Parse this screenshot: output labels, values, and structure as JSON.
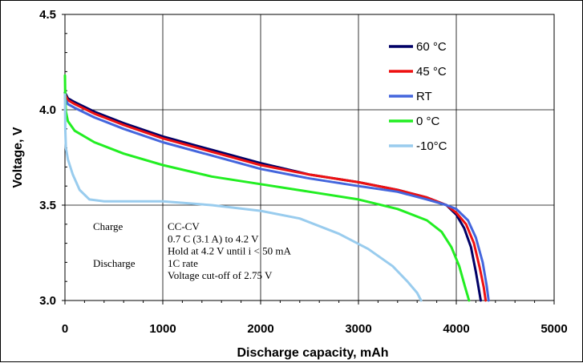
{
  "chart_data": {
    "type": "line",
    "xlabel": "Discharge capacity, mAh",
    "ylabel": "Voltage, V",
    "xlim": [
      0,
      5000
    ],
    "ylim": [
      3.0,
      4.5
    ],
    "x_ticks": [
      "0",
      "1000",
      "2000",
      "3000",
      "4000",
      "5000"
    ],
    "y_ticks": [
      "3.0",
      "3.5",
      "4.0",
      "4.5"
    ],
    "grid": true,
    "legend_position": "top-right",
    "series": [
      {
        "name": "60 °C",
        "color": "#000066",
        "x": [
          0,
          30,
          100,
          300,
          600,
          1000,
          1500,
          2000,
          2500,
          3000,
          3400,
          3700,
          3900,
          4000,
          4080,
          4150,
          4200,
          4230,
          4250
        ],
        "y": [
          4.09,
          4.06,
          4.04,
          3.99,
          3.93,
          3.86,
          3.79,
          3.72,
          3.66,
          3.62,
          3.58,
          3.54,
          3.5,
          3.45,
          3.38,
          3.28,
          3.15,
          3.06,
          3.0
        ]
      },
      {
        "name": "45 °C",
        "color": "#ee1111",
        "x": [
          0,
          30,
          100,
          300,
          600,
          1000,
          1500,
          2000,
          2500,
          3000,
          3400,
          3700,
          3900,
          4000,
          4100,
          4180,
          4240,
          4280,
          4300
        ],
        "y": [
          4.08,
          4.05,
          4.03,
          3.98,
          3.92,
          3.85,
          3.78,
          3.71,
          3.66,
          3.62,
          3.58,
          3.54,
          3.5,
          3.46,
          3.4,
          3.3,
          3.17,
          3.07,
          3.0
        ]
      },
      {
        "name": "RT",
        "color": "#4466dd",
        "x": [
          0,
          30,
          100,
          300,
          600,
          1000,
          1500,
          2000,
          2500,
          3000,
          3400,
          3700,
          3900,
          4000,
          4120,
          4200,
          4270,
          4310,
          4330
        ],
        "y": [
          4.06,
          4.03,
          4.01,
          3.96,
          3.9,
          3.83,
          3.76,
          3.69,
          3.64,
          3.6,
          3.57,
          3.53,
          3.5,
          3.48,
          3.42,
          3.33,
          3.2,
          3.08,
          3.0
        ]
      },
      {
        "name": "0 °C",
        "color": "#22ee22",
        "x": [
          0,
          3,
          10,
          30,
          100,
          300,
          600,
          1000,
          1500,
          2000,
          2500,
          3000,
          3400,
          3700,
          3850,
          3950,
          4030,
          4090,
          4130
        ],
        "y": [
          4.18,
          4.05,
          3.99,
          3.94,
          3.89,
          3.83,
          3.77,
          3.71,
          3.65,
          3.61,
          3.57,
          3.53,
          3.48,
          3.42,
          3.36,
          3.28,
          3.18,
          3.07,
          3.0
        ]
      },
      {
        "name": "-10°C",
        "color": "#99ccee",
        "x": [
          0,
          3,
          10,
          30,
          80,
          150,
          250,
          400,
          700,
          1000,
          1500,
          2000,
          2400,
          2800,
          3100,
          3350,
          3500,
          3600,
          3640
        ],
        "y": [
          4.08,
          3.9,
          3.8,
          3.74,
          3.66,
          3.58,
          3.53,
          3.52,
          3.52,
          3.52,
          3.5,
          3.47,
          3.43,
          3.35,
          3.27,
          3.18,
          3.1,
          3.04,
          3.0
        ]
      }
    ],
    "annotation": [
      {
        "label": "Charge",
        "text": "CC-CV"
      },
      {
        "label": "",
        "text": "0.7 C (3.1 A) to 4.2 V"
      },
      {
        "label": "",
        "text": "Hold at 4.2 V until i < 50 mA"
      },
      {
        "label": "Discharge",
        "text": "1C rate"
      },
      {
        "label": "",
        "text": "Voltage cut-off of 2.75 V"
      }
    ]
  }
}
